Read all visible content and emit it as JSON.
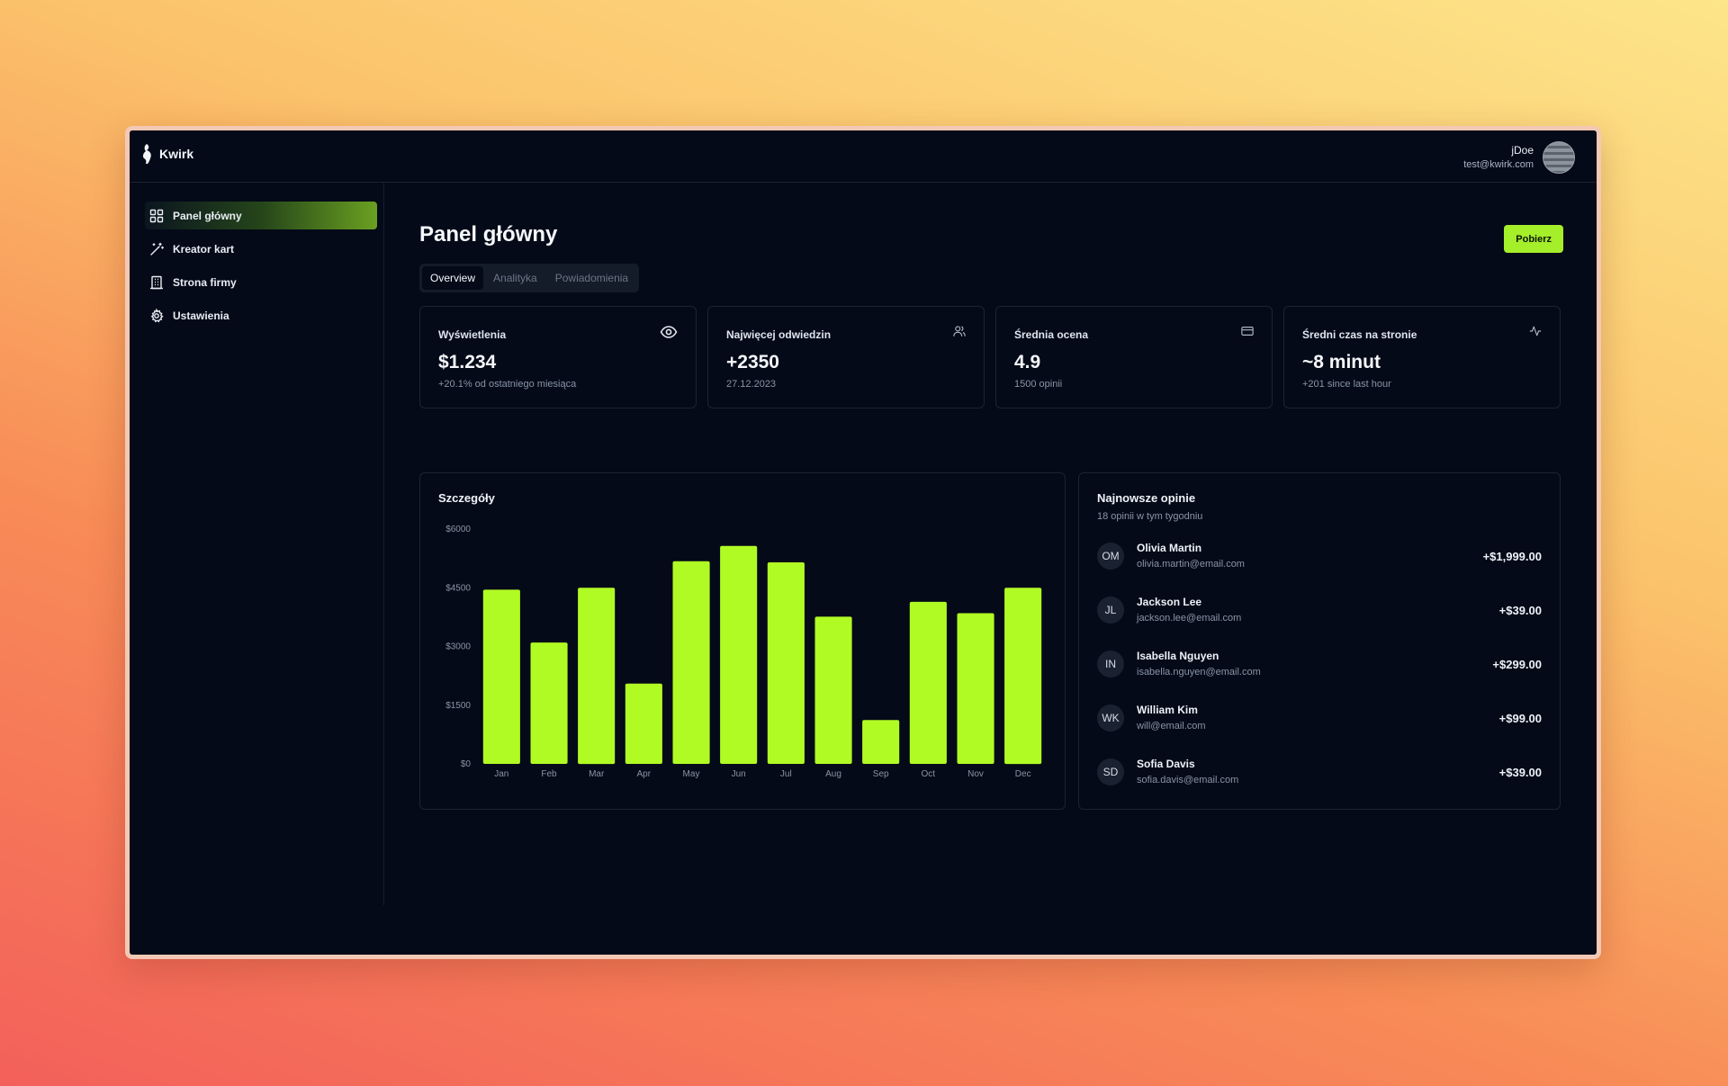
{
  "app": {
    "name": "Kwirk"
  },
  "user": {
    "name": "jDoe",
    "email": "test@kwirk.com"
  },
  "sidebar": {
    "items": [
      {
        "label": "Panel główny",
        "icon": "dashboard-grid-icon",
        "active": true
      },
      {
        "label": "Kreator kart",
        "icon": "magic-wand-icon",
        "active": false
      },
      {
        "label": "Strona firmy",
        "icon": "building-icon",
        "active": false
      },
      {
        "label": "Ustawienia",
        "icon": "gear-icon",
        "active": false
      }
    ]
  },
  "header": {
    "title": "Panel główny",
    "download_label": "Pobierz"
  },
  "tabs": [
    {
      "label": "Overview",
      "active": true
    },
    {
      "label": "Analityka",
      "active": false
    },
    {
      "label": "Powiadomienia",
      "active": false
    }
  ],
  "stats": [
    {
      "label": "Wyświetlenia",
      "value": "$1.234",
      "sub": "+20.1% od ostatniego miesiąca",
      "icon": "eye-icon"
    },
    {
      "label": "Najwięcej odwiedzin",
      "value": "+2350",
      "sub": "27.12.2023",
      "icon": "users-icon"
    },
    {
      "label": "Średnia ocena",
      "value": "4.9",
      "sub": "1500 opinii",
      "icon": "credit-card-icon"
    },
    {
      "label": "Średni czas na stronie",
      "value": "~8 minut",
      "sub": "+201 since last hour",
      "icon": "activity-icon"
    }
  ],
  "overview": {
    "title": "Szczegóły"
  },
  "chart_data": {
    "type": "bar",
    "categories": [
      "Jan",
      "Feb",
      "Mar",
      "Apr",
      "May",
      "Jun",
      "Jul",
      "Aug",
      "Sep",
      "Oct",
      "Nov",
      "Dec"
    ],
    "values": [
      4450,
      3100,
      4500,
      2050,
      5180,
      5570,
      5150,
      3760,
      1120,
      4140,
      3850,
      4500
    ],
    "yticks": [
      "$0",
      "$1500",
      "$3000",
      "$4500",
      "$6000"
    ],
    "ylim": [
      0,
      6000
    ],
    "title": "Szczegóły",
    "xlabel": "",
    "ylabel": "",
    "bar_color": "#b1fb24",
    "grid": false
  },
  "recent_sales": {
    "title": "Najnowsze opinie",
    "subtitle": "18 opinii w tym tygodniu",
    "items": [
      {
        "initials": "OM",
        "name": "Olivia Martin",
        "email": "olivia.martin@email.com",
        "amount": "+$1,999.00"
      },
      {
        "initials": "JL",
        "name": "Jackson Lee",
        "email": "jackson.lee@email.com",
        "amount": "+$39.00"
      },
      {
        "initials": "IN",
        "name": "Isabella Nguyen",
        "email": "isabella.nguyen@email.com",
        "amount": "+$299.00"
      },
      {
        "initials": "WK",
        "name": "William Kim",
        "email": "will@email.com",
        "amount": "+$99.00"
      },
      {
        "initials": "SD",
        "name": "Sofia Davis",
        "email": "sofia.davis@email.com",
        "amount": "+$39.00"
      }
    ]
  },
  "colors": {
    "accent": "#a4ee2a",
    "background": "#040a18",
    "border": "#1c2333"
  }
}
